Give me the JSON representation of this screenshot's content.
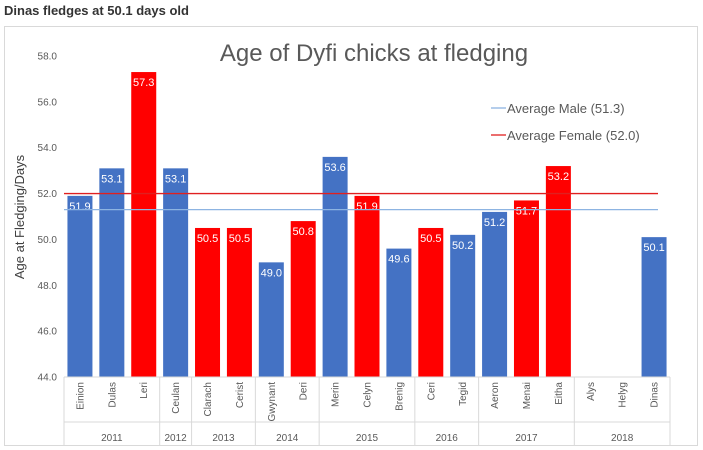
{
  "page": {
    "heading": "Dinas fledges at 50.1 days old"
  },
  "colors": {
    "male": "#4472c4",
    "female": "#ff0000",
    "male_line": "#8db4e2",
    "female_line": "#e02020"
  },
  "chart_data": {
    "type": "bar",
    "title": "Age of Dyfi chicks at fledging",
    "xlabel": "",
    "ylabel": "Age at Fledging/Days",
    "ylim": [
      44.0,
      58.0
    ],
    "yticks": [
      "44.0",
      "46.0",
      "48.0",
      "50.0",
      "52.0",
      "54.0",
      "56.0",
      "58.0"
    ],
    "grid": false,
    "legend_position": "top-right",
    "categories": [
      "Einion",
      "Dulas",
      "Leri",
      "Ceulan",
      "Clarach",
      "Cerist",
      "Gwynant",
      "Deri",
      "Merin",
      "Celyn",
      "Brenig",
      "Ceri",
      "Tegid",
      "Aeron",
      "Menai",
      "Eitha",
      "Alys",
      "Helyg",
      "Dinas"
    ],
    "values": [
      51.9,
      53.1,
      57.3,
      53.1,
      50.5,
      50.5,
      49.0,
      50.8,
      53.6,
      51.9,
      49.6,
      50.5,
      50.2,
      51.2,
      51.7,
      53.2,
      null,
      null,
      50.1
    ],
    "labels": [
      "51.9",
      "53.1",
      "57.3",
      "53.1",
      "50.5",
      "50.5",
      "49.0",
      "50.8",
      "53.6",
      "51.9",
      "49.6",
      "50.5",
      "50.2",
      "51.2",
      "51.7",
      "53.2",
      "",
      "",
      "50.1"
    ],
    "sex": [
      "M",
      "M",
      "F",
      "M",
      "F",
      "F",
      "M",
      "F",
      "M",
      "F",
      "M",
      "F",
      "M",
      "M",
      "F",
      "F",
      "",
      "",
      "M"
    ],
    "years": [
      {
        "label": "2011",
        "count": 3
      },
      {
        "label": "2012",
        "count": 1
      },
      {
        "label": "2013",
        "count": 2
      },
      {
        "label": "2014",
        "count": 2
      },
      {
        "label": "2015",
        "count": 3
      },
      {
        "label": "2016",
        "count": 2
      },
      {
        "label": "2017",
        "count": 3
      },
      {
        "label": "2018",
        "count": 3
      }
    ],
    "reference_lines": [
      {
        "name": "Average Male (51.3)",
        "value": 51.3,
        "color": "#8db4e2"
      },
      {
        "name": "Average Female (52.0)",
        "value": 52.0,
        "color": "#e02020"
      }
    ]
  }
}
